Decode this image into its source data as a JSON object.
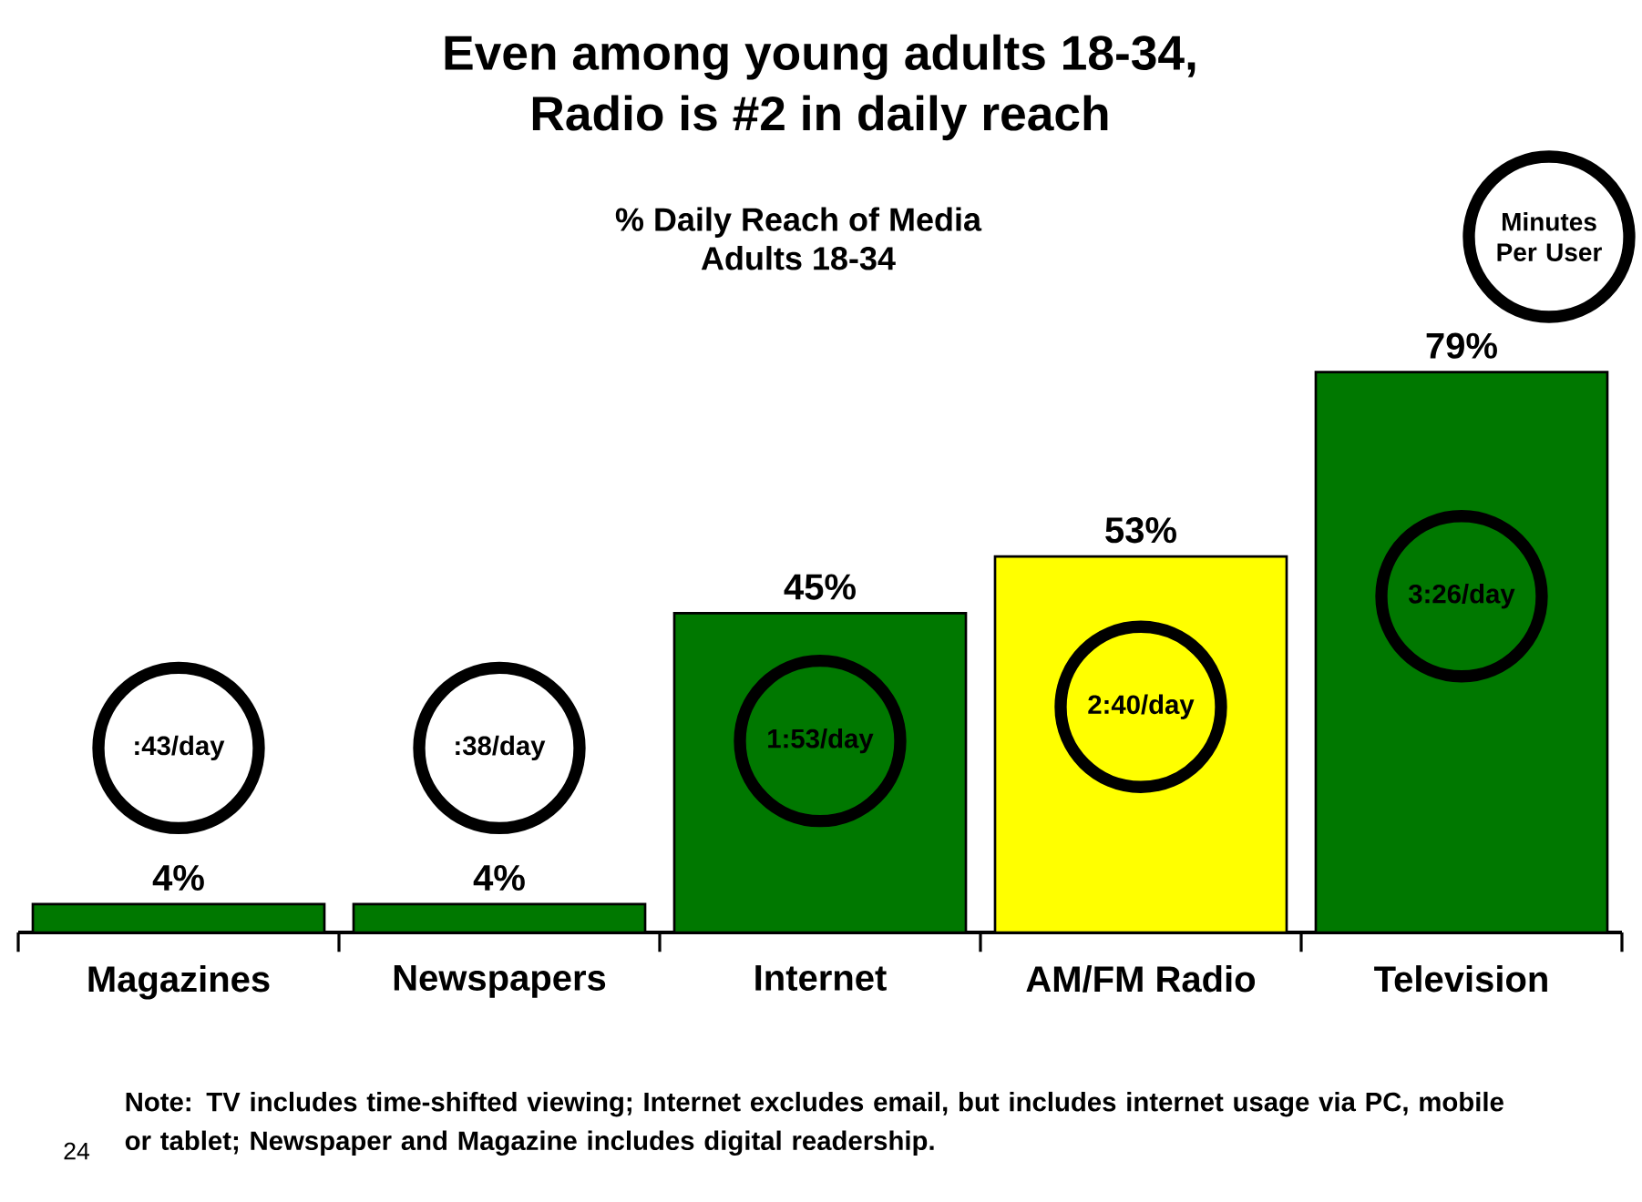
{
  "chart_data": {
    "type": "bar",
    "title": "Even among young adults 18-34,\nRadio is #2 in daily reach",
    "subtitle": "% Daily Reach of Media\nAdults 18-34",
    "categories": [
      "Magazines",
      "Newspapers",
      "Internet",
      "AM/FM Radio",
      "Television"
    ],
    "values": [
      4,
      4,
      45,
      53,
      79
    ],
    "colors": [
      "#007800",
      "#007800",
      "#007800",
      "#ffff00",
      "#007800"
    ],
    "value_labels": [
      "4%",
      "4%",
      "45%",
      "53%",
      "79%"
    ],
    "annotations": [
      ":43/day",
      ":38/day",
      "1:53/day",
      "2:40/day",
      "3:26/day",
      "Minutes Per User",
      "Note:  TV includes time-shifted viewing; Internet excludes email, but includes internet usage via PC, mobile or tablet; Newspaper and Magazine includes digital readership.",
      "24"
    ]
  }
}
